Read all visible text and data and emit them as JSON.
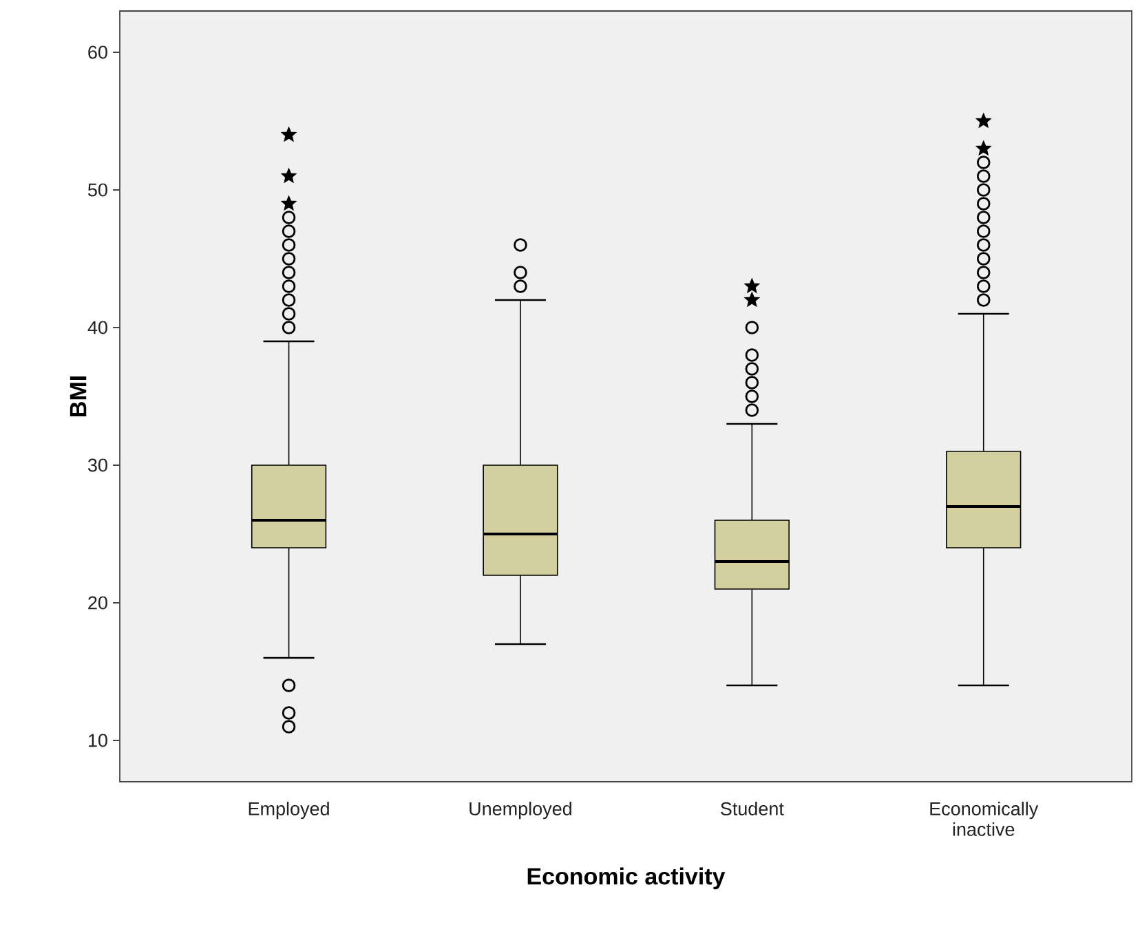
{
  "chart_data": {
    "type": "box",
    "xlabel": "Economic activity",
    "ylabel": "BMI",
    "categories": [
      "Employed",
      "Unemployed",
      "Student",
      "Economically inactive"
    ],
    "ylim": [
      7,
      63
    ],
    "yticks": [
      10,
      20,
      30,
      40,
      50,
      60
    ],
    "series": [
      {
        "type": "box",
        "color": "#d4cf9e",
        "marker": "circle",
        "boxes": [
          {
            "low": 16,
            "q1": 24,
            "median": 26,
            "q3": 30,
            "high": 39,
            "outliers": [
              11,
              12,
              14,
              40,
              41,
              42,
              43,
              44,
              45,
              46,
              47,
              48
            ]
          },
          {
            "low": 17,
            "q1": 22,
            "median": 25,
            "q3": 30,
            "high": 42,
            "outliers": [
              43,
              44,
              46
            ]
          },
          {
            "low": 14,
            "q1": 21,
            "median": 23,
            "q3": 26,
            "high": 33,
            "outliers": [
              34,
              35,
              36,
              37,
              38,
              40
            ]
          },
          {
            "low": 14,
            "q1": 24,
            "median": 27,
            "q3": 31,
            "high": 41,
            "outliers": [
              42,
              43,
              44,
              45,
              46,
              47,
              48,
              49,
              50,
              51,
              52
            ]
          }
        ]
      },
      {
        "type": "scatter",
        "color": "#000000",
        "marker": "star",
        "x": [
          "Employed",
          "Employed",
          "Employed",
          "Student",
          "Student",
          "Economically inactive",
          "Economically inactive"
        ],
        "values": [
          49,
          51,
          54,
          42,
          43,
          53,
          55
        ]
      }
    ]
  }
}
